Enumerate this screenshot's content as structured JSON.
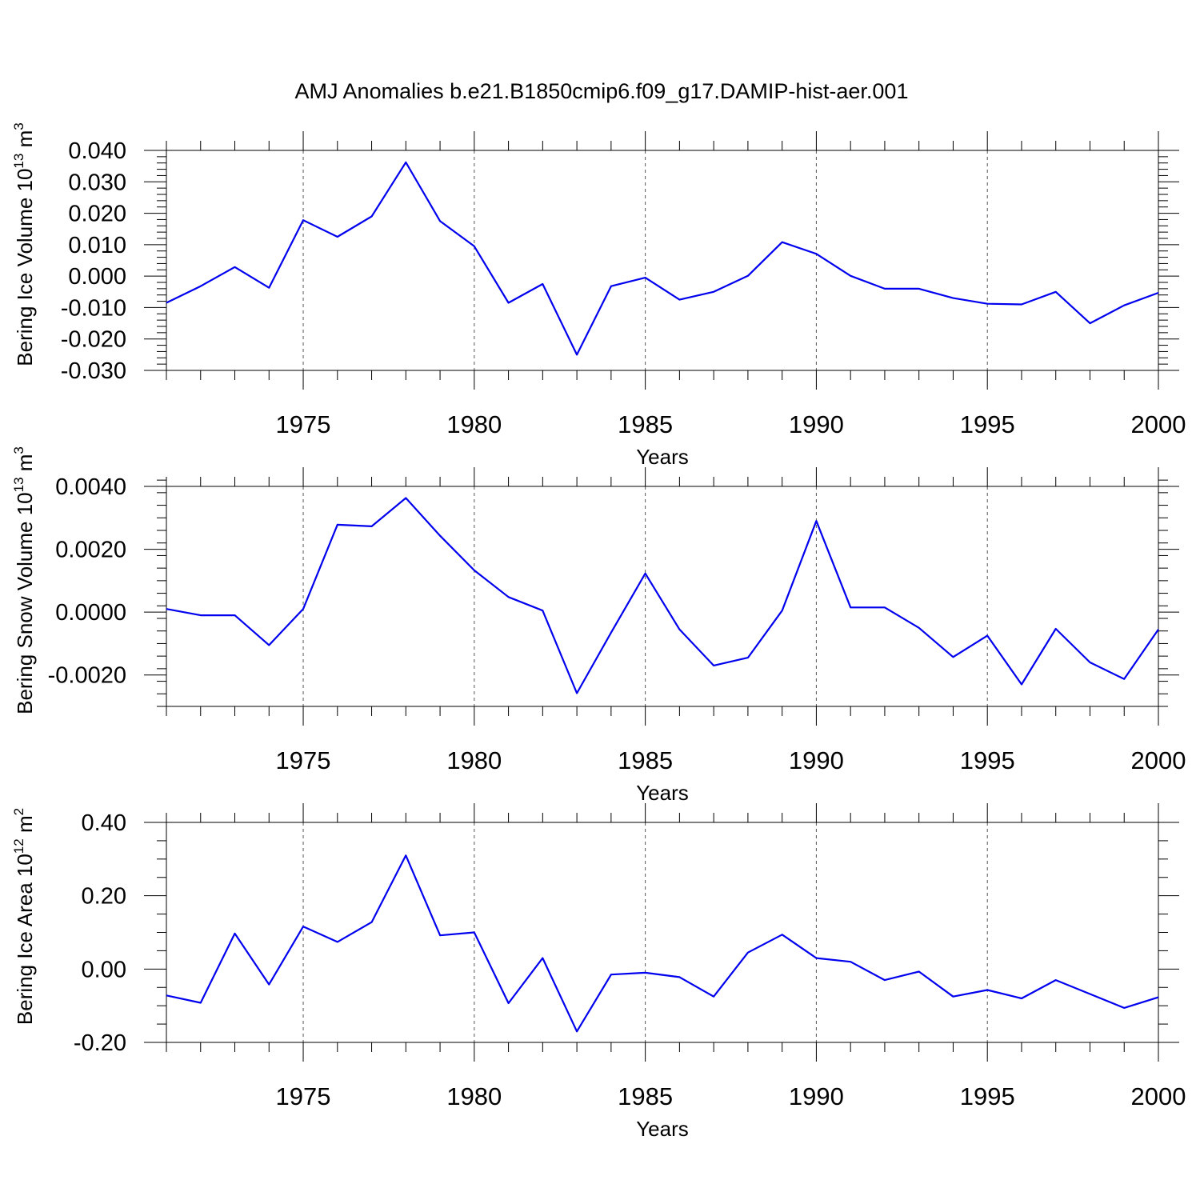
{
  "title": "AMJ Anomalies b.e21.B1850cmip6.f09_g17.DAMIP-hist-aer.001",
  "line_color": "#0000ee",
  "chart_data": [
    {
      "type": "line",
      "ylabel_main": "Bering Ice Volume 10",
      "ylabel_exp": "13",
      "ylabel_unit": " m",
      "ylabel_unit_exp": "3",
      "xlabel": "Years",
      "xlim": [
        1971,
        2000
      ],
      "ylim": [
        -0.03,
        0.04
      ],
      "yticks": [
        -0.03,
        -0.02,
        -0.01,
        0.0,
        0.01,
        0.02,
        0.03,
        0.04
      ],
      "ytick_labels": [
        "-0.030",
        "-0.020",
        "-0.010",
        "0.000",
        "0.010",
        "0.020",
        "0.030",
        "0.040"
      ],
      "y_minor_step": 0.002,
      "xticks": [
        1975,
        1980,
        1985,
        1990,
        1995,
        2000
      ],
      "xtick_labels": [
        "1975",
        "1980",
        "1985",
        "1990",
        "1995",
        "2000"
      ],
      "x": [
        1971,
        1972,
        1973,
        1974,
        1975,
        1976,
        1977,
        1978,
        1979,
        1980,
        1981,
        1982,
        1983,
        1984,
        1985,
        1986,
        1987,
        1988,
        1989,
        1990,
        1991,
        1992,
        1993,
        1994,
        1995,
        1996,
        1997,
        1998,
        1999,
        2000
      ],
      "values": [
        -0.0085,
        -0.0032,
        0.0029,
        -0.0037,
        0.0178,
        0.0125,
        0.019,
        0.0362,
        0.0175,
        0.0095,
        -0.0085,
        -0.0025,
        -0.025,
        -0.0032,
        -0.0005,
        -0.0075,
        -0.005,
        0.0001,
        0.0108,
        0.0071,
        0.0001,
        -0.004,
        -0.004,
        -0.007,
        -0.0088,
        -0.009,
        -0.005,
        -0.015,
        -0.0093,
        -0.0053
      ],
      "series_name": ""
    },
    {
      "type": "line",
      "ylabel_main": "Bering Snow Volume 10",
      "ylabel_exp": "13",
      "ylabel_unit": " m",
      "ylabel_unit_exp": "3",
      "xlabel": "Years",
      "xlim": [
        1971,
        2000
      ],
      "ylim": [
        -0.003,
        0.004
      ],
      "yticks": [
        -0.002,
        0.0,
        0.002,
        0.004
      ],
      "ytick_labels": [
        "-0.0020",
        "0.0000",
        "0.0020",
        "0.0040"
      ],
      "y_minor_step": 0.0004,
      "xticks": [
        1975,
        1980,
        1985,
        1990,
        1995,
        2000
      ],
      "xtick_labels": [
        "1975",
        "1980",
        "1985",
        "1990",
        "1995",
        "2000"
      ],
      "x": [
        1971,
        1972,
        1973,
        1974,
        1975,
        1976,
        1977,
        1978,
        1979,
        1980,
        1981,
        1982,
        1983,
        1984,
        1985,
        1986,
        1987,
        1988,
        1989,
        1990,
        1991,
        1992,
        1993,
        1994,
        1995,
        1996,
        1997,
        1998,
        1999,
        2000
      ],
      "values": [
        0.0001,
        -0.0001,
        -0.0001,
        -0.00105,
        0.0001,
        0.00278,
        0.00273,
        0.00363,
        0.00243,
        0.00133,
        0.00048,
        5e-05,
        -0.00258,
        -0.00065,
        0.00123,
        -0.00055,
        -0.0017,
        -0.00145,
        5e-05,
        0.0029,
        0.00015,
        0.00015,
        -0.0005,
        -0.00143,
        -0.00075,
        -0.0023,
        -0.00053,
        -0.0016,
        -0.00213,
        -0.00055
      ],
      "series_name": ""
    },
    {
      "type": "line",
      "ylabel_main": "Bering Ice Area 10",
      "ylabel_exp": "12",
      "ylabel_unit": " m",
      "ylabel_unit_exp": "2",
      "xlabel": "Years",
      "xlim": [
        1971,
        2000
      ],
      "ylim": [
        -0.2,
        0.4
      ],
      "yticks": [
        -0.2,
        0.0,
        0.2,
        0.4
      ],
      "ytick_labels": [
        "-0.20",
        "0.00",
        "0.20",
        "0.40"
      ],
      "y_minor_step": 0.05,
      "xticks": [
        1975,
        1980,
        1985,
        1990,
        1995,
        2000
      ],
      "xtick_labels": [
        "1975",
        "1980",
        "1985",
        "1990",
        "1995",
        "2000"
      ],
      "x": [
        1971,
        1972,
        1973,
        1974,
        1975,
        1976,
        1977,
        1978,
        1979,
        1980,
        1981,
        1982,
        1983,
        1984,
        1985,
        1986,
        1987,
        1988,
        1989,
        1990,
        1991,
        1992,
        1993,
        1994,
        1995,
        1996,
        1997,
        1998,
        1999,
        2000
      ],
      "values": [
        -0.072,
        -0.092,
        0.097,
        -0.042,
        0.116,
        0.074,
        0.128,
        0.31,
        0.092,
        0.1,
        -0.093,
        0.03,
        -0.17,
        -0.015,
        -0.01,
        -0.022,
        -0.075,
        0.045,
        0.094,
        0.03,
        0.02,
        -0.03,
        -0.007,
        -0.075,
        -0.057,
        -0.08,
        -0.03,
        -0.068,
        -0.106,
        -0.077
      ],
      "series_name": ""
    }
  ]
}
